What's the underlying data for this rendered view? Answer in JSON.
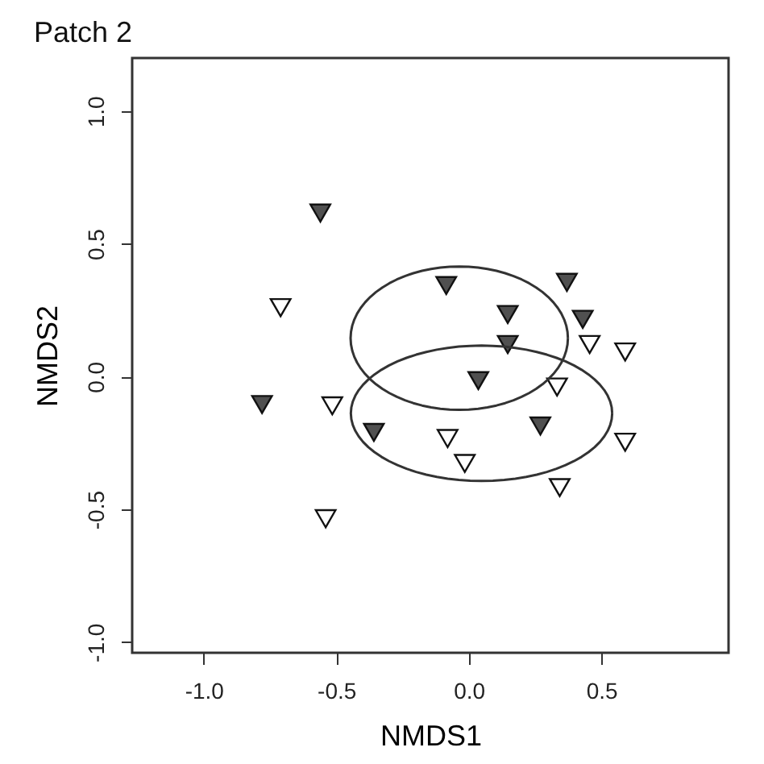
{
  "chart_data": {
    "type": "scatter",
    "title": "Patch 2",
    "xlabel": "NMDS1",
    "ylabel": "NMDS2",
    "xlim": [
      -1.27,
      0.98
    ],
    "ylim": [
      -1.04,
      1.2
    ],
    "xticks": [
      {
        "value": -1,
        "label": "-1.0"
      },
      -0.5,
      {
        "value": 0,
        "label": "0.0"
      },
      0.5
    ],
    "yticks": [
      {
        "value": -1,
        "label": "-1.0"
      },
      -0.5,
      {
        "value": 0,
        "label": "0.0"
      },
      0.5,
      {
        "value": 1,
        "label": "1.0"
      }
    ],
    "grid": false,
    "marker": "triangle",
    "series": [
      {
        "type": "scatter",
        "color": "#505050",
        "x": [
          -0.56,
          -0.085,
          0.37,
          0.147,
          0.43,
          0.147,
          0.036,
          -0.78,
          -0.358,
          0.27
        ],
        "values": [
          0.616,
          0.343,
          0.355,
          0.234,
          0.216,
          0.121,
          -0.015,
          -0.105,
          -0.21,
          -0.186
        ]
      },
      {
        "type": "scatter",
        "color": "#ffffff",
        "x": [
          -0.71,
          0.456,
          0.59,
          0.333,
          -0.515,
          -0.08,
          0.59,
          -0.015,
          0.343,
          -0.54
        ],
        "values": [
          0.26,
          0.121,
          0.093,
          -0.039,
          -0.11,
          -0.233,
          -0.247,
          -0.327,
          -0.418,
          -0.535
        ]
      }
    ]
  }
}
